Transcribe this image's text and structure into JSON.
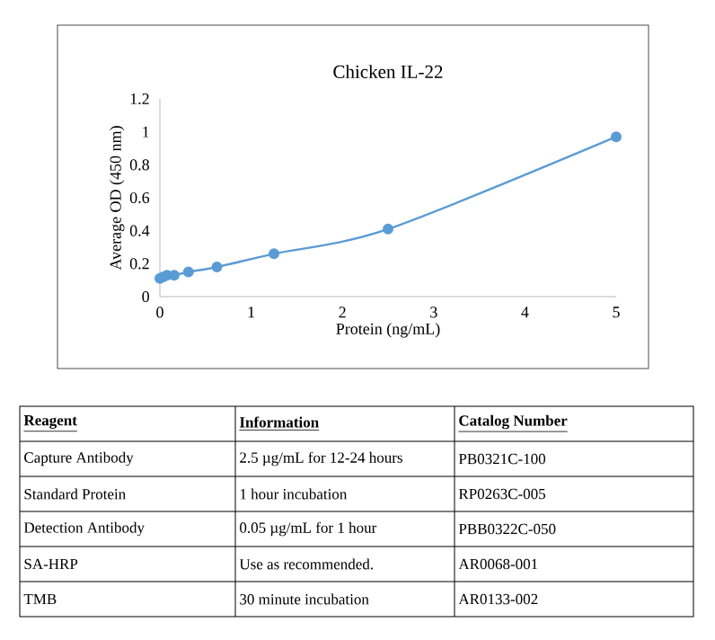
{
  "chart_data": {
    "type": "line",
    "title": "Chicken IL-22",
    "xlabel": "Protein (ng/mL)",
    "ylabel": "Average OD (450 nm)",
    "x": [
      0,
      0.039,
      0.078,
      0.156,
      0.3125,
      0.625,
      1.25,
      2.5,
      5
    ],
    "series": [
      {
        "color": "#5b9bd5",
        "values": [
          0.11,
          0.12,
          0.13,
          0.13,
          0.15,
          0.18,
          0.26,
          0.41,
          0.97
        ]
      }
    ],
    "xlim": [
      0,
      5
    ],
    "xticks": [
      0,
      1,
      2,
      3,
      4,
      5
    ],
    "ylim": [
      0,
      1.2
    ],
    "yticks": [
      0,
      0.2,
      0.4,
      0.6,
      0.8,
      1,
      1.2
    ],
    "marker": "circle",
    "annotations": [
      "Reagent",
      "Information",
      "Catalog Number",
      "Capture Antibody",
      "2.5 µg/mL for 12-24 hours",
      "PB0321C-100",
      "Standard Protein",
      "1 hour incubation",
      "RP0263C-005",
      "Detection Antibody",
      "0.05 µg/mL for 1 hour",
      "PBB0322C-050",
      "SA-HRP",
      "Use as recommended.",
      "AR0068-001",
      "TMB",
      "30 minute incubation",
      "AR0133-002"
    ]
  }
}
